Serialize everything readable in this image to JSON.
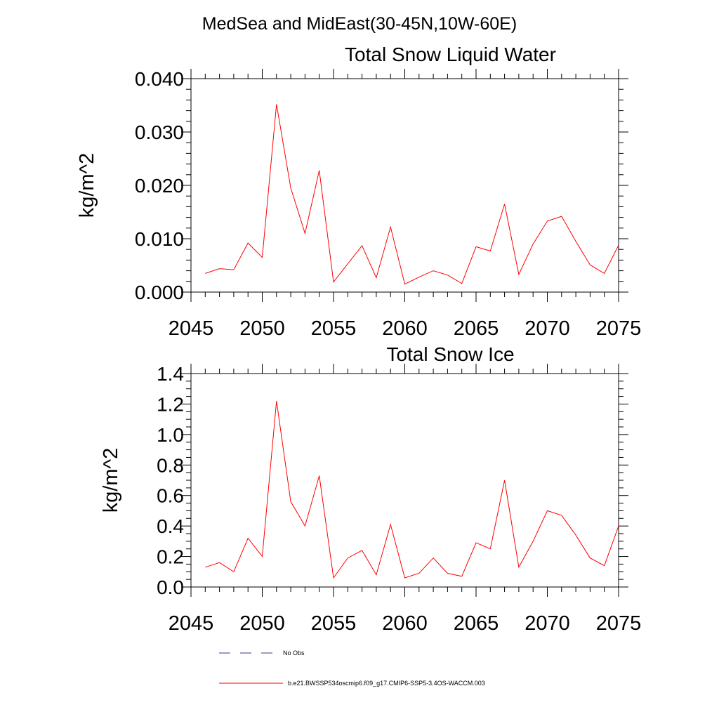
{
  "figure": {
    "suptitle": "MedSea and MidEast(30-45N,10W-60E)"
  },
  "chart_data": [
    {
      "type": "line",
      "title": "Total Snow Liquid Water",
      "xlabel": "",
      "ylabel": "kg/m^2",
      "xlim": [
        2045,
        2075
      ],
      "ylim": [
        0,
        0.04
      ],
      "xticks": [
        2045,
        2050,
        2055,
        2060,
        2065,
        2070,
        2075
      ],
      "xtick_labels": [
        "2045",
        "2050",
        "2055",
        "2060",
        "2065",
        "2070",
        "2075"
      ],
      "yticks": [
        0,
        0.01,
        0.02,
        0.03,
        0.04
      ],
      "ytick_labels": [
        "0.000",
        "0.010",
        "0.020",
        "0.030",
        "0.040"
      ],
      "series": [
        {
          "name": "b.e21.BWSSP534oscmip6.f09_g17.CMIP6-SSP5-3.4OS-WACCM.003",
          "color": "#ff0000",
          "x": [
            2046,
            2047,
            2048,
            2049,
            2050,
            2051,
            2052,
            2053,
            2054,
            2055,
            2056,
            2057,
            2058,
            2059,
            2060,
            2061,
            2062,
            2063,
            2064,
            2065,
            2066,
            2067,
            2068,
            2069,
            2070,
            2071,
            2072,
            2073,
            2074,
            2075
          ],
          "y": [
            0.0035,
            0.0044,
            0.0042,
            0.0092,
            0.0065,
            0.0352,
            0.0195,
            0.011,
            0.0228,
            0.0019,
            0.0053,
            0.0087,
            0.0027,
            0.0122,
            0.0015,
            0.0028,
            0.004,
            0.0032,
            0.0016,
            0.0085,
            0.0077,
            0.0165,
            0.0033,
            0.009,
            0.0133,
            0.0142,
            0.0095,
            0.0051,
            0.0035,
            0.0088
          ]
        }
      ]
    },
    {
      "type": "line",
      "title": "Total Snow Ice",
      "xlabel": "",
      "ylabel": "kg/m^2",
      "xlim": [
        2045,
        2075
      ],
      "ylim": [
        0,
        1.4
      ],
      "xticks": [
        2045,
        2050,
        2055,
        2060,
        2065,
        2070,
        2075
      ],
      "xtick_labels": [
        "2045",
        "2050",
        "2055",
        "2060",
        "2065",
        "2070",
        "2075"
      ],
      "yticks": [
        0,
        0.2,
        0.4,
        0.6,
        0.8,
        1.0,
        1.2,
        1.4
      ],
      "ytick_labels": [
        "0.0",
        "0.2",
        "0.4",
        "0.6",
        "0.8",
        "1.0",
        "1.2",
        "1.4"
      ],
      "series": [
        {
          "name": "b.e21.BWSSP534oscmip6.f09_g17.CMIP6-SSP5-3.4OS-WACCM.003",
          "color": "#ff0000",
          "x": [
            2046,
            2047,
            2048,
            2049,
            2050,
            2051,
            2052,
            2053,
            2054,
            2055,
            2056,
            2057,
            2058,
            2059,
            2060,
            2061,
            2062,
            2063,
            2064,
            2065,
            2066,
            2067,
            2068,
            2069,
            2070,
            2071,
            2072,
            2073,
            2074,
            2075
          ],
          "y": [
            0.13,
            0.16,
            0.1,
            0.32,
            0.2,
            1.22,
            0.56,
            0.4,
            0.73,
            0.06,
            0.19,
            0.24,
            0.08,
            0.41,
            0.06,
            0.09,
            0.19,
            0.09,
            0.07,
            0.29,
            0.25,
            0.7,
            0.13,
            0.3,
            0.5,
            0.47,
            0.34,
            0.19,
            0.14,
            0.4
          ]
        }
      ]
    }
  ],
  "legend": {
    "entries": [
      {
        "label": "No Obs",
        "color": "#3a3a8c",
        "style": "dashed"
      },
      {
        "label": "b.e21.BWSSP534oscmip6.f09_g17.CMIP6-SSP5-3.4OS-WACCM.003",
        "color": "#ff0000",
        "style": "solid"
      }
    ]
  }
}
